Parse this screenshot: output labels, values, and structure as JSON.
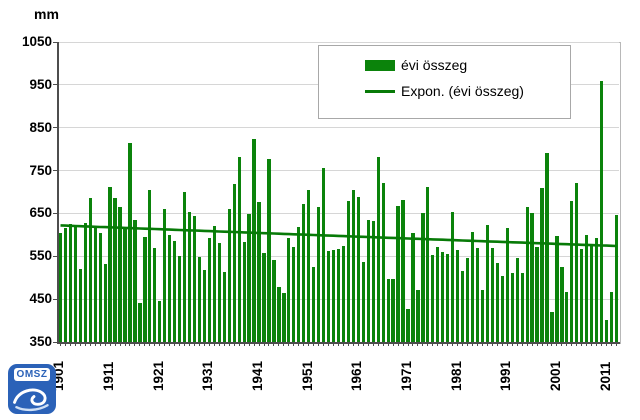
{
  "unit_label": "mm",
  "legend": {
    "series_label": "évi összeg",
    "trend_label": "Expon. (évi összeg)"
  },
  "logo": {
    "text": "OMSZ"
  },
  "colors": {
    "bar": "#0b830b",
    "trend": "#077a07",
    "grid": "#d6d6d6",
    "axis": "#4d4d4d",
    "plot_border": "#b8b8b8",
    "legend_border": "#a8a8a8",
    "logo_blue": "#2b62b8",
    "logo_wave": "#9fc1e8"
  },
  "chart_data": {
    "type": "bar",
    "title": "",
    "ylabel": "mm",
    "xlabel": "",
    "ylim": [
      350,
      1050
    ],
    "ytick_step": 100,
    "yticks": [
      350,
      450,
      550,
      650,
      750,
      850,
      950,
      1050
    ],
    "grid": true,
    "legend_position": "top-right",
    "years": {
      "start": 1901,
      "end": 2013
    },
    "xtick_labels": [
      "1901",
      "1911",
      "1921",
      "1931",
      "1941",
      "1951",
      "1961",
      "1971",
      "1981",
      "1991",
      "2001",
      "2011"
    ],
    "xtick_interval": 10,
    "series": [
      {
        "name": "évi összeg",
        "values": [
          604,
          615,
          625,
          620,
          520,
          627,
          685,
          615,
          605,
          533,
          712,
          685,
          665,
          615,
          815,
          635,
          440,
          595,
          705,
          570,
          445,
          660,
          600,
          585,
          550,
          700,
          654,
          645,
          549,
          518,
          592,
          621,
          582,
          514,
          660,
          718,
          782,
          583,
          648,
          823,
          677,
          558,
          778,
          541,
          478,
          464,
          592,
          572,
          619,
          672,
          704,
          526,
          666,
          755,
          562,
          564,
          566,
          574,
          680,
          704,
          689,
          537,
          635,
          632,
          782,
          720,
          497,
          497,
          668,
          682,
          427,
          604,
          472,
          650,
          712,
          553,
          571,
          559,
          555,
          654,
          564,
          516,
          545,
          606,
          570,
          472,
          624,
          570,
          535,
          504,
          615,
          510,
          546,
          512,
          664,
          652,
          572,
          710,
          790,
          421,
          597,
          526,
          467,
          680,
          722,
          566,
          600,
          576,
          592,
          959,
          401,
          467,
          646
        ]
      }
    ],
    "trend": {
      "type": "exponential",
      "name": "Expon. (évi összeg)",
      "start_value": 622,
      "end_value": 574
    }
  }
}
